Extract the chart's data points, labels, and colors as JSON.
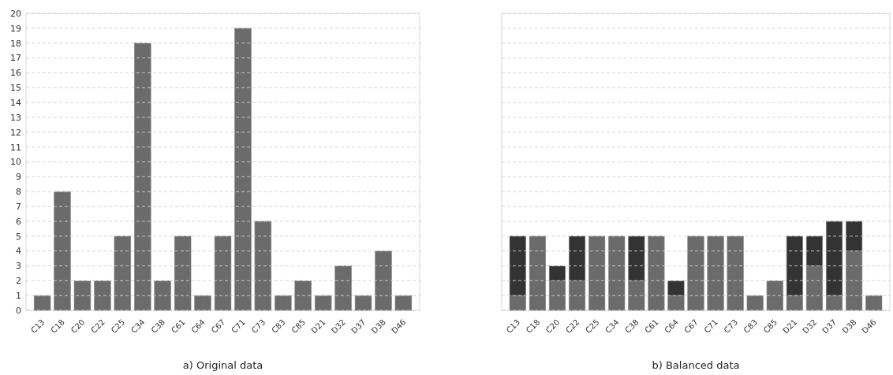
{
  "chart_data": [
    {
      "type": "bar",
      "title": "a) Original data",
      "categories": [
        "C13",
        "C18",
        "C20",
        "C22",
        "C25",
        "C34",
        "C38",
        "C61",
        "C64",
        "C67",
        "C71",
        "C73",
        "C83",
        "C85",
        "D21",
        "D32",
        "D37",
        "D38",
        "D46"
      ],
      "series": [
        {
          "color": "#6b6b6b",
          "values": [
            1,
            8,
            2,
            2,
            5,
            18,
            2,
            5,
            1,
            5,
            19,
            6,
            1,
            2,
            1,
            3,
            1,
            4,
            1
          ]
        }
      ],
      "ylim": [
        0,
        20
      ],
      "yticks": [
        0,
        1,
        2,
        3,
        4,
        5,
        6,
        7,
        8,
        9,
        10,
        11,
        12,
        13,
        14,
        15,
        16,
        17,
        18,
        19,
        20
      ],
      "grid": "y"
    },
    {
      "type": "bar",
      "title": "b) Balanced data",
      "categories": [
        "C13",
        "C18",
        "C20",
        "C22",
        "C25",
        "C34",
        "C38",
        "C61",
        "C64",
        "C67",
        "C71",
        "C73",
        "C83",
        "C85",
        "D21",
        "D32",
        "D37",
        "D38",
        "D46"
      ],
      "stacked": true,
      "series": [
        {
          "color": "#6b6b6b",
          "values": [
            1,
            5,
            2,
            2,
            5,
            5,
            2,
            5,
            1,
            5,
            5,
            5,
            1,
            2,
            1,
            3,
            1,
            4,
            1
          ]
        },
        {
          "color": "#333333",
          "values": [
            4,
            0,
            1,
            3,
            0,
            0,
            3,
            0,
            1,
            0,
            0,
            0,
            0,
            0,
            4,
            2,
            5,
            2,
            0
          ]
        }
      ],
      "ylim": [
        0,
        20
      ],
      "yticks": [
        0,
        1,
        2,
        3,
        4,
        5,
        6,
        7,
        8,
        9,
        10,
        11,
        12,
        13,
        14,
        15,
        16,
        17,
        18,
        19,
        20
      ],
      "grid": "y",
      "tick_labels": "x"
    }
  ]
}
